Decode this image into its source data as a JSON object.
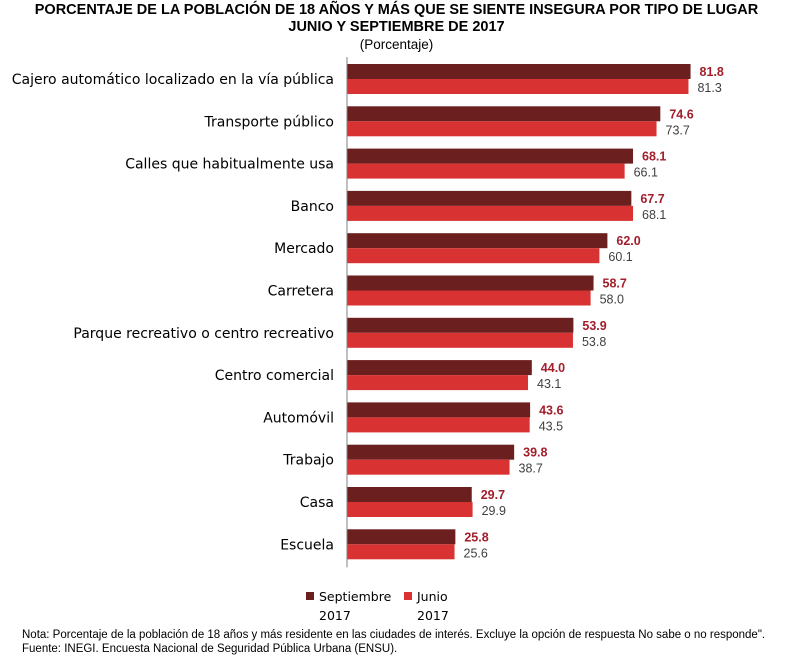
{
  "title_line1": "PORCENTAJE DE LA POBLACIÓN DE 18 AÑOS Y MÁS QUE SE SIENTE INSEGURA POR TIPO DE LUGAR",
  "title_line2": "JUNIO Y SEPTIEMBRE DE 2017",
  "subtitle": "(Porcentaje)",
  "note": "Nota: Porcentaje de la población de 18 años y más residente en las ciudades de interés. Excluye la opción de respuesta No sabe o no responde\".",
  "source": "Fuente: INEGI. Encuesta Nacional de Seguridad Pública Urbana (ENSU).",
  "chart_data": {
    "type": "bar",
    "orientation": "horizontal",
    "title": "PORCENTAJE DE LA POBLACIÓN DE 18 AÑOS Y MÁS QUE SE SIENTE INSEGURA POR TIPO DE LUGAR JUNIO Y SEPTIEMBRE DE 2017",
    "subtitle": "(Porcentaje)",
    "categories": [
      "Cajero automático localizado en la vía pública",
      "Transporte público",
      "Calles que habitualmente usa",
      "Banco",
      "Mercado",
      "Carretera",
      "Parque recreativo o centro recreativo",
      "Centro comercial",
      "Automóvil",
      "Trabajo",
      "Casa",
      "Escuela"
    ],
    "series": [
      {
        "name": "Septiembre 2017",
        "legend_line1": "Septiembre",
        "legend_line2": "2017",
        "color": "#6b1f1f",
        "label_color": "#a31d2b",
        "values": [
          81.8,
          74.6,
          68.1,
          67.7,
          62.0,
          58.7,
          53.9,
          44.0,
          43.6,
          39.8,
          29.7,
          25.8
        ]
      },
      {
        "name": "Junio 2017",
        "legend_line1": "Junio",
        "legend_line2": "2017",
        "color": "#d93232",
        "label_color": "#404040",
        "values": [
          81.3,
          73.7,
          66.1,
          68.1,
          60.1,
          58.0,
          53.8,
          43.1,
          43.5,
          38.7,
          29.9,
          25.6
        ]
      }
    ],
    "xlim": [
      0,
      100
    ],
    "grid": false,
    "legend_position": "bottom"
  }
}
